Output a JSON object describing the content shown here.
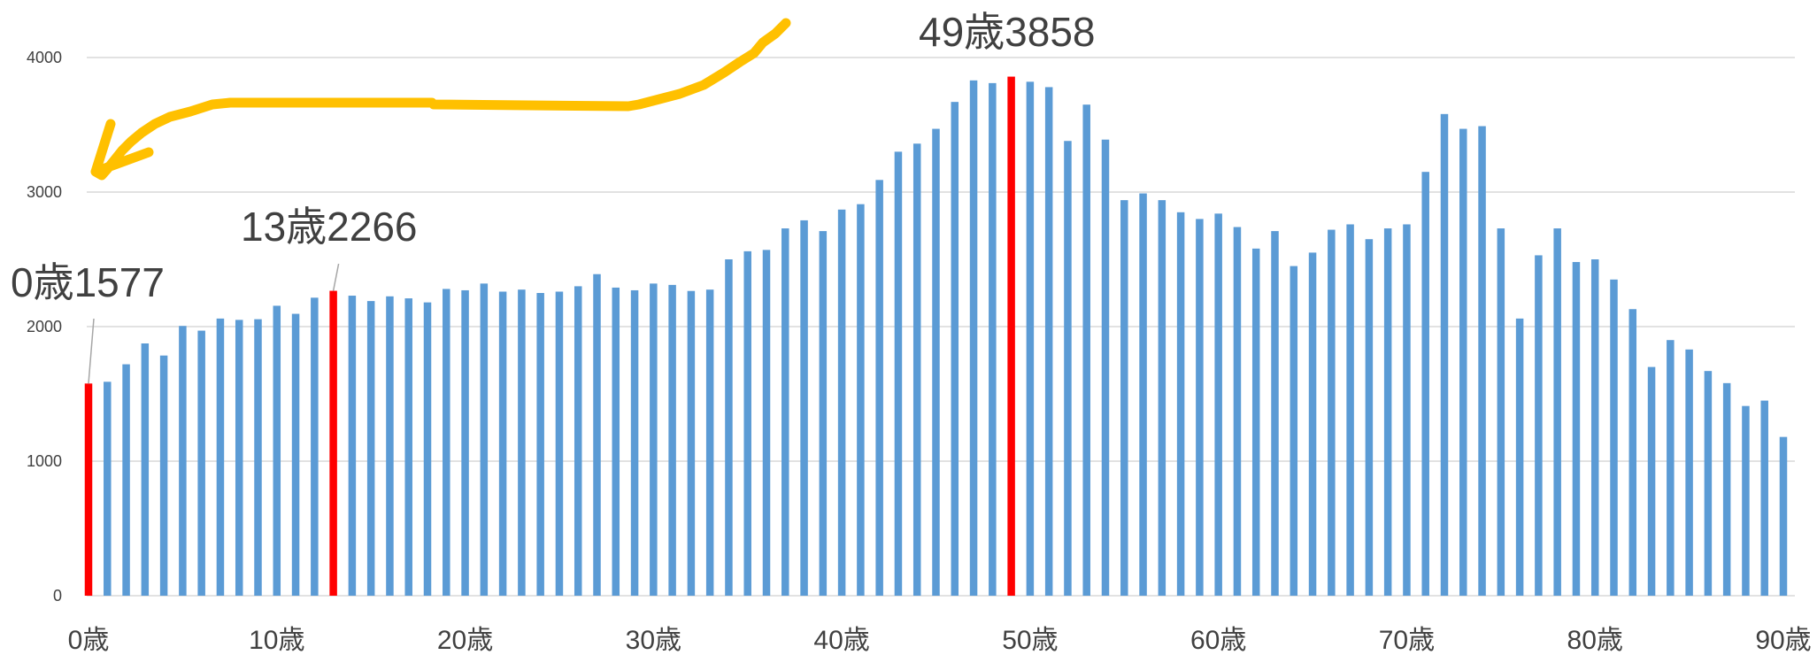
{
  "chart_data": {
    "type": "bar",
    "title": "",
    "xlabel": "",
    "ylabel": "",
    "x_ticks": [
      "0歳",
      "10歳",
      "20歳",
      "30歳",
      "40歳",
      "50歳",
      "60歳",
      "70歳",
      "80歳",
      "90歳"
    ],
    "y_ticks": [
      "0",
      "1000",
      "2000",
      "3000",
      "4000"
    ],
    "ylim": [
      0,
      4000
    ],
    "xlim": [
      0,
      90
    ],
    "grid": true,
    "x": [
      0,
      1,
      2,
      3,
      4,
      5,
      6,
      7,
      8,
      9,
      10,
      11,
      12,
      13,
      14,
      15,
      16,
      17,
      18,
      19,
      20,
      21,
      22,
      23,
      24,
      25,
      26,
      27,
      28,
      29,
      30,
      31,
      32,
      33,
      34,
      35,
      36,
      37,
      38,
      39,
      40,
      41,
      42,
      43,
      44,
      45,
      46,
      47,
      48,
      49,
      50,
      51,
      52,
      53,
      54,
      55,
      56,
      57,
      58,
      59,
      60,
      61,
      62,
      63,
      64,
      65,
      66,
      67,
      68,
      69,
      70,
      71,
      72,
      73,
      74,
      75,
      76,
      77,
      78,
      79,
      80,
      81,
      82,
      83,
      84,
      85,
      86,
      87,
      88,
      89,
      90
    ],
    "values": [
      1577,
      1590,
      1720,
      1875,
      1785,
      2005,
      1970,
      2060,
      2050,
      2055,
      2155,
      2095,
      2215,
      2266,
      2230,
      2190,
      2225,
      2210,
      2180,
      2280,
      2270,
      2320,
      2260,
      2275,
      2250,
      2260,
      2300,
      2390,
      2290,
      2270,
      2320,
      2310,
      2265,
      2275,
      2500,
      2560,
      2570,
      2730,
      2790,
      2710,
      2870,
      2910,
      3090,
      3300,
      3360,
      3470,
      3670,
      3830,
      3810,
      3858,
      3820,
      3780,
      3380,
      3650,
      3390,
      2940,
      2990,
      2940,
      2850,
      2800,
      2840,
      2740,
      2580,
      2710,
      2450,
      2550,
      2720,
      2760,
      2650,
      2730,
      2760,
      3150,
      3580,
      3470,
      3490,
      2730,
      2060,
      2530,
      2730,
      2480,
      2500,
      2350,
      2130,
      1700,
      1900,
      1830,
      1670,
      1580,
      1410,
      1450,
      1180
    ],
    "bar_color": "#5b9bd5",
    "highlight_color": "#ff0000",
    "highlights": [
      {
        "x": 0,
        "label": "0歳1577"
      },
      {
        "x": 13,
        "label": "13歳2266"
      },
      {
        "x": 49,
        "label": "49歳3858"
      }
    ],
    "arrow_color": "#ffc000"
  }
}
